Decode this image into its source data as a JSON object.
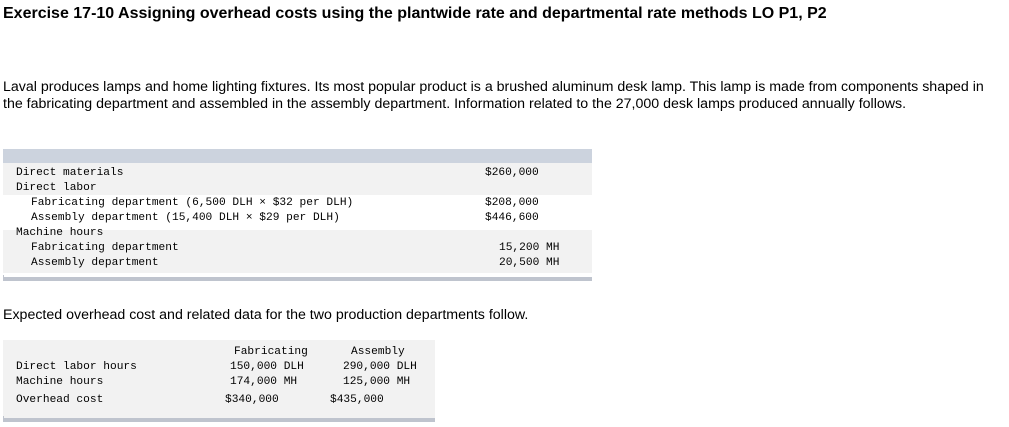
{
  "title": "Exercise 17-10 Assigning overhead costs using the plantwide rate and departmental rate methods LO P1, P2",
  "intro": "Laval produces lamps and home lighting fixtures. Its most popular product is a brushed aluminum desk lamp. This lamp is made from components shaped in the fabricating department and assembled in the assembly department. Information related to the 27,000 desk lamps produced annually follows.",
  "table1": {
    "direct_materials_label": "Direct materials",
    "direct_materials_value": "$260,000",
    "direct_labor_label": "Direct labor",
    "fab_labor_label": "Fabricating department (6,500 DLH × $32 per DLH)",
    "fab_labor_value": "$208,000",
    "asm_labor_label": "Assembly department (15,400 DLH × $29 per DLH)",
    "asm_labor_value": "$446,600",
    "machine_hours_label": "Machine hours",
    "fab_mh_label": "Fabricating department",
    "fab_mh_value": "15,200 MH",
    "asm_mh_label": "Assembly department",
    "asm_mh_value": "20,500 MH"
  },
  "intro2": "Expected overhead cost and related data for the two production departments follow.",
  "table2": {
    "col_fabricating": "Fabricating",
    "col_assembly": "Assembly",
    "dlh_label": "Direct labor hours",
    "dlh_fab": "150,000 DLH",
    "dlh_asm": "290,000 DLH",
    "mh_label": "Machine hours",
    "mh_fab": "174,000 MH",
    "mh_asm": "125,000 MH",
    "oh_label": "Overhead cost",
    "oh_fab": "$340,000",
    "oh_asm": "$435,000"
  }
}
